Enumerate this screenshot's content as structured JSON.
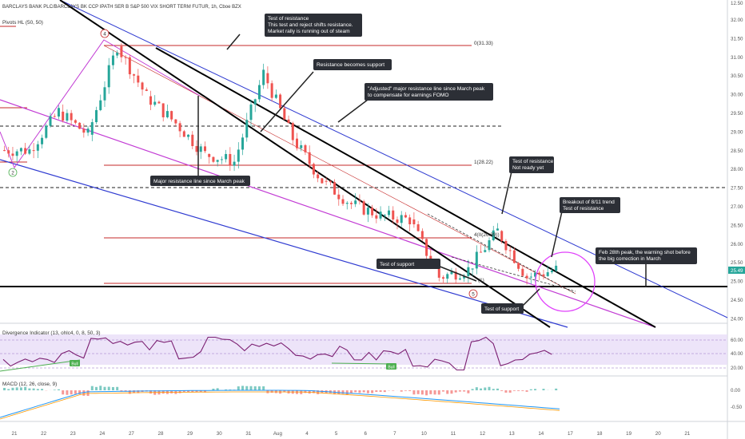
{
  "header": {
    "symbol": "BARCLAYS BANK PLC/BARCLAYS BK CCP IPATH SER B S&P 500 VIX SHORT TERM FUTUR, 1h, Cboe BZX",
    "pivots": "Pivots HL (50, 50)"
  },
  "colors": {
    "up": "#26a69a",
    "down": "#ef5350",
    "resistance": "#000000",
    "blue": "#2f3bd1",
    "magenta": "#c23bd4",
    "hline": "#c62828"
  },
  "price_scale": {
    "ticks": [
      "32.00",
      "31.50",
      "31.00",
      "30.50",
      "30.00",
      "29.50",
      "29.00",
      "28.50",
      "28.00",
      "27.50",
      "27.00",
      "26.50",
      "26.00",
      "25.50",
      "25.00",
      "24.50",
      "24.00"
    ],
    "top_label": "12.50",
    "current": "25.49"
  },
  "divergence_scale": [
    "60.00",
    "40.00",
    "20.00"
  ],
  "macd_scale": [
    "0.00",
    "-0.50"
  ],
  "x_axis": [
    "21",
    "22",
    "23",
    "24",
    "27",
    "28",
    "29",
    "30",
    "31",
    "Aug",
    "4",
    "5",
    "6",
    "7",
    "10",
    "11",
    "12",
    "13",
    "14",
    "17",
    "18",
    "19",
    "20",
    "21"
  ],
  "pivot_labels": {
    "p1": "0(31.33)",
    "p2": "1(28.22)",
    "p3": "4(II(26.39))",
    "p4": "(1)"
  },
  "wave_labels": {
    "w4": "4",
    "w5": "5",
    "w2": "2"
  },
  "annotations": {
    "a1": [
      "Test of resistance",
      "This test and reject shifts resistance.",
      "Market rally is running out of steam"
    ],
    "a2": [
      "Resistance becomes support"
    ],
    "a3": [
      "\"Adjusted\" major resistance line since March peak",
      "to compensate for earnings FOMO"
    ],
    "a4": [
      "Major resistance line since March peak"
    ],
    "a5": [
      "Test of resistance",
      "Not ready yet"
    ],
    "a6": [
      "Breakout of 8/11 trend",
      "Test of resistance"
    ],
    "a7": [
      "Feb 28th peak, the warning shot before",
      "the big correction in March"
    ],
    "a8": [
      "Test of support"
    ],
    "a9": [
      "Test of support"
    ]
  },
  "divergence": {
    "label": "Divergence Indicator (13, ohlc4, 0, 8, 50, 3)",
    "bull": "Bull"
  },
  "macd": {
    "label": "MACD (12, 26, close, 9)"
  },
  "chart_data": {
    "type": "candlestick",
    "title": "BARCLAYS BANK PLC/BARCLAYS BK CCP IPATH SER B S&P 500 VIX SHORT TERM FUTUR, 1h, Cboe BZX",
    "ylim": [
      24.0,
      32.5
    ],
    "current_price": 25.49,
    "x_categories": [
      "21",
      "22",
      "23",
      "24",
      "27",
      "28",
      "29",
      "30",
      "31",
      "Aug",
      "4",
      "5",
      "6",
      "7",
      "10",
      "11",
      "12",
      "13",
      "14"
    ],
    "approx_close_by_session": [
      28.6,
      29.6,
      29.0,
      31.3,
      30.0,
      29.3,
      28.5,
      28.3,
      30.6,
      28.9,
      27.8,
      27.2,
      26.9,
      26.8,
      25.3,
      25.5,
      26.5,
      25.3,
      25.5
    ],
    "horizontal_levels": [
      31.33,
      29.2,
      28.22,
      27.65,
      26.39,
      25.1,
      25.0
    ],
    "divergence_indicator_approx": [
      30,
      38,
      45,
      70,
      60,
      58,
      40,
      70,
      55,
      60,
      42,
      48,
      38,
      45,
      30,
      25,
      70,
      32,
      50
    ],
    "macd_hist_approx": [
      0.05,
      0.02,
      -0.1,
      0.08,
      -0.05,
      -0.08,
      -0.05,
      0.02,
      0.1,
      -0.05,
      -0.06,
      -0.08,
      -0.04,
      -0.02,
      -0.1,
      -0.05,
      0.05,
      -0.03,
      0.02
    ]
  }
}
